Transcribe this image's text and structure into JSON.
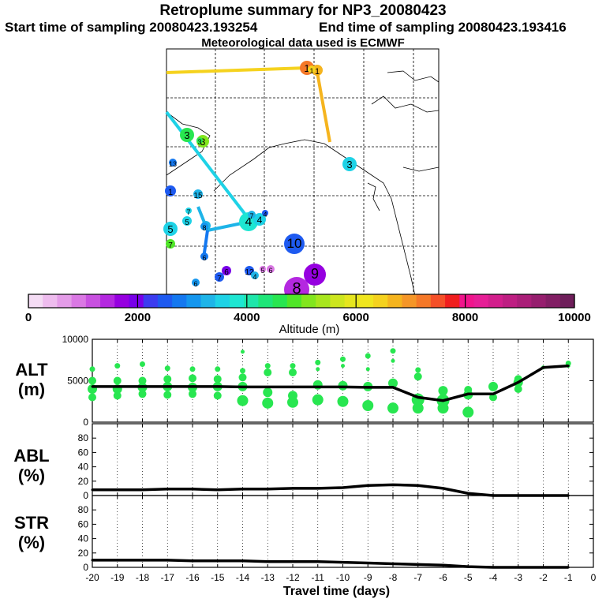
{
  "header": {
    "title": "Retroplume summary for NP3_20080423",
    "start_label": "Start time of sampling 20080423.193254",
    "end_label": "End time of sampling 20080423.193416",
    "met_label": "Meteorological data used is ECMWF"
  },
  "map": {
    "markers": [
      "1",
      "1",
      "3",
      "3",
      "13",
      "1",
      "15",
      "7",
      "5",
      "4",
      "4",
      "4",
      "8",
      "5",
      "7",
      "6",
      "7",
      "6",
      "12",
      "4",
      "5",
      "6",
      "10",
      "9",
      "8",
      "6",
      "8",
      "3",
      "7",
      "3",
      "1"
    ]
  },
  "colorbar": {
    "ticks": [
      "0",
      "2000",
      "4000",
      "6000",
      "8000",
      "10000"
    ],
    "label": "Altitude (m)",
    "colors": [
      "#f4dcf4",
      "#eebcee",
      "#e49ce8",
      "#da78e4",
      "#c850e0",
      "#b428e0",
      "#9600e0",
      "#7800e8",
      "#3c3cf0",
      "#1e5af0",
      "#1478f0",
      "#1496ee",
      "#1eb4e8",
      "#1ed2e6",
      "#1ee6d2",
      "#1ee6aa",
      "#1ee678",
      "#28e650",
      "#50e628",
      "#82e61e",
      "#a8e61e",
      "#cde61e",
      "#e6e61e",
      "#f0e61e",
      "#f5d21e",
      "#f5b41e",
      "#f59628",
      "#f57828",
      "#f55028",
      "#f01e1e",
      "#f0148c",
      "#e61e96",
      "#d21e8c",
      "#be1e82",
      "#aa1e78",
      "#961e6e",
      "#821e64",
      "#6e1e5a"
    ]
  },
  "chart_data": [
    {
      "type": "line",
      "panel": "ALT",
      "ylabel": "ALT\n(m)",
      "ylabel_line1": "ALT",
      "ylabel_line2": "(m)",
      "ylim": [
        0,
        10000
      ],
      "yticks": [
        "0",
        "5000",
        "10000"
      ],
      "x": [
        -20,
        -19,
        -18,
        -17,
        -16,
        -15,
        -14,
        -13,
        -12,
        -11,
        -10,
        -9,
        -8,
        -7,
        -6,
        -5,
        -4,
        -3,
        -2,
        -1
      ],
      "series": [
        {
          "name": "mean altitude",
          "values": [
            4300,
            4300,
            4300,
            4300,
            4300,
            4300,
            4250,
            4250,
            4250,
            4250,
            4250,
            4200,
            4200,
            3000,
            2600,
            3400,
            3400,
            4800,
            6600,
            6800
          ]
        }
      ],
      "cluster_altitudes": [
        [
          3000,
          4000,
          5000,
          6400
        ],
        [
          3200,
          4000,
          5000,
          6800
        ],
        [
          3400,
          4200,
          5000,
          7000
        ],
        [
          3300,
          4300,
          5200,
          6500
        ],
        [
          3400,
          4200,
          5300,
          6400
        ],
        [
          3200,
          4300,
          5200,
          6400
        ],
        [
          2600,
          4300,
          5400,
          6200,
          8500
        ],
        [
          2300,
          3600,
          6000,
          6800
        ],
        [
          2400,
          3200,
          6000,
          6800
        ],
        [
          2700,
          4500,
          6400,
          7200
        ],
        [
          2500,
          4400,
          6800,
          7600
        ],
        [
          2000,
          4300,
          6400,
          8000
        ],
        [
          1700,
          4700,
          7400,
          8600
        ],
        [
          1700,
          2700,
          5500,
          6300
        ],
        [
          1700,
          2600,
          3600,
          3800
        ],
        [
          1200,
          3300,
          3900
        ],
        [
          3000,
          4300
        ],
        [
          4000,
          4800,
          5200
        ],
        [
          6600
        ],
        [
          6800,
          7100
        ]
      ]
    },
    {
      "type": "line",
      "panel": "ABL",
      "ylabel_line1": "ABL",
      "ylabel_line2": "(%)",
      "ylim": [
        0,
        100
      ],
      "yticks": [
        "0",
        "20",
        "40",
        "60",
        "80"
      ],
      "x": [
        -20,
        -19,
        -18,
        -17,
        -16,
        -15,
        -14,
        -13,
        -12,
        -11,
        -10,
        -9,
        -8,
        -7,
        -6,
        -5,
        -4,
        -3,
        -2,
        -1
      ],
      "series": [
        {
          "name": "ABL fraction",
          "values": [
            8,
            8,
            8,
            9,
            9,
            8,
            9,
            9,
            10,
            10,
            11,
            14,
            15,
            14,
            10,
            3,
            0,
            0,
            0,
            0
          ]
        }
      ]
    },
    {
      "type": "line",
      "panel": "STR",
      "ylabel_line1": "STR",
      "ylabel_line2": "(%)",
      "ylim": [
        0,
        100
      ],
      "yticks": [
        "0",
        "20",
        "40",
        "60",
        "80"
      ],
      "x": [
        -20,
        -19,
        -18,
        -17,
        -16,
        -15,
        -14,
        -13,
        -12,
        -11,
        -10,
        -9,
        -8,
        -7,
        -6,
        -5,
        -4,
        -3,
        -2,
        -1
      ],
      "series": [
        {
          "name": "STR fraction",
          "values": [
            10,
            10,
            10,
            10,
            9,
            9,
            9,
            8,
            8,
            8,
            7,
            6,
            5,
            4,
            3,
            1,
            0,
            0,
            0,
            0
          ]
        }
      ],
      "xlabel": "Travel time (days)",
      "xticks": [
        "-20",
        "-19",
        "-18",
        "-17",
        "-16",
        "-15",
        "-14",
        "-13",
        "-12",
        "-11",
        "-10",
        "-9",
        "-8",
        "-7",
        "-6",
        "-5",
        "-4",
        "-3",
        "-2",
        "-1",
        "0"
      ]
    }
  ]
}
